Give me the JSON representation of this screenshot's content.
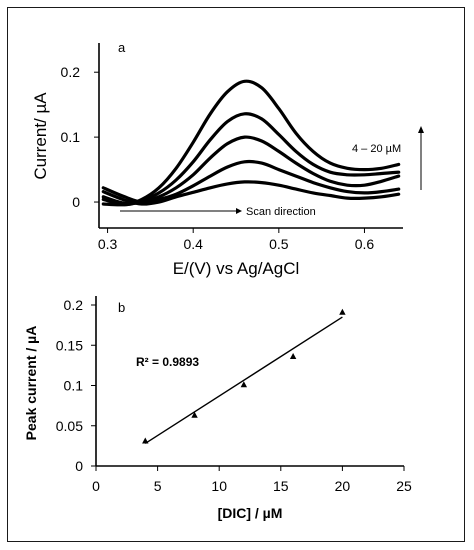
{
  "chart_data": [
    {
      "type": "line",
      "panel_label": "a",
      "xlabel": "E/(V) vs Ag/AgCl",
      "ylabel": "Current/ µA",
      "xlim": [
        0.29,
        0.645
      ],
      "ylim": [
        -0.04,
        0.245
      ],
      "x_ticks": [
        0.3,
        0.4,
        0.5,
        0.6
      ],
      "x_tick_labels": [
        "0.3",
        "0.4",
        "0.5",
        "0.6"
      ],
      "y_ticks": [
        0,
        0.1,
        0.2
      ],
      "y_tick_labels": [
        "0",
        "0.1",
        "0.2"
      ],
      "annotations": {
        "concentration_range": "4 – 20 µM",
        "scan_direction": "Scan direction"
      },
      "curve_x": [
        0.295,
        0.32,
        0.34,
        0.36,
        0.38,
        0.4,
        0.42,
        0.44,
        0.46,
        0.48,
        0.5,
        0.52,
        0.54,
        0.56,
        0.58,
        0.6,
        0.62,
        0.64
      ],
      "series": [
        {
          "values": [
            0.016,
            0.003,
            -0.003,
            0.0,
            0.008,
            0.015,
            0.022,
            0.028,
            0.031,
            0.03,
            0.026,
            0.02,
            0.014,
            0.01,
            0.006,
            0.006,
            0.008,
            0.012
          ]
        },
        {
          "values": [
            0.022,
            0.008,
            0.0,
            0.004,
            0.012,
            0.025,
            0.04,
            0.054,
            0.062,
            0.06,
            0.05,
            0.04,
            0.03,
            0.022,
            0.016,
            0.014,
            0.016,
            0.02
          ]
        },
        {
          "values": [
            0.008,
            -0.002,
            0.0,
            0.008,
            0.022,
            0.042,
            0.068,
            0.09,
            0.1,
            0.094,
            0.078,
            0.06,
            0.044,
            0.032,
            0.026,
            0.026,
            0.032,
            0.04
          ]
        },
        {
          "values": [
            0.004,
            -0.004,
            0.002,
            0.014,
            0.034,
            0.062,
            0.096,
            0.124,
            0.136,
            0.128,
            0.104,
            0.078,
            0.058,
            0.046,
            0.042,
            0.042,
            0.044,
            0.046
          ]
        },
        {
          "values": [
            -0.003,
            -0.004,
            0.004,
            0.022,
            0.052,
            0.092,
            0.136,
            0.17,
            0.186,
            0.176,
            0.144,
            0.106,
            0.078,
            0.06,
            0.052,
            0.05,
            0.052,
            0.058
          ]
        }
      ]
    },
    {
      "type": "scatter",
      "panel_label": "b",
      "xlabel": "[DIC] / µM",
      "ylabel": "Peak current / µA",
      "xlim": [
        0,
        25
      ],
      "ylim": [
        0,
        0.2
      ],
      "x_ticks": [
        0,
        5,
        10,
        15,
        20,
        25
      ],
      "x_tick_labels": [
        "0",
        "5",
        "10",
        "15",
        "20",
        "25"
      ],
      "y_ticks": [
        0,
        0.05,
        0.1,
        0.15,
        0.2
      ],
      "y_tick_labels": [
        "0",
        "0.05",
        "0.1",
        "0.15",
        "0.2"
      ],
      "x": [
        4,
        8,
        12,
        16,
        20
      ],
      "y": [
        0.031,
        0.063,
        0.101,
        0.136,
        0.191
      ],
      "fit_line": {
        "x": [
          4,
          20
        ],
        "y": [
          0.028,
          0.185
        ]
      },
      "r_squared_label": "R² = 0.9893"
    }
  ]
}
